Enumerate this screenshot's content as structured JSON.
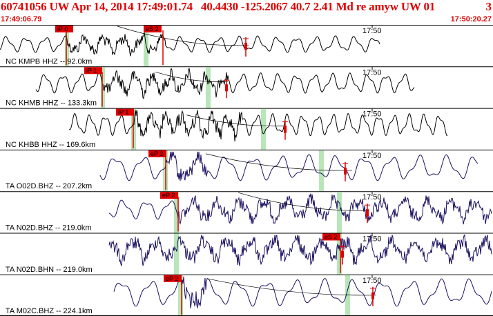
{
  "header": {
    "title": "60741056 UW Apr 14, 2014 17:49:01.74   40.4430 -125.2067 40.7 2.41 Md re amyw UW 01",
    "suffix": "3",
    "start_time": "17:49:06.79",
    "end_time": "17:50:20.27"
  },
  "colors": {
    "header_text": "#e00000",
    "trace_black": "#000000",
    "trace_blue": "#1a1060",
    "pick_marker": "#e00000",
    "highlight_band": "#b8e6b8",
    "separator": "#000000"
  },
  "time_axis": {
    "label": "17:50"
  },
  "traces": [
    {
      "station_label": "NC KMPB HHZ -- 92.0km",
      "phases": [
        {
          "label": "iP 0"
        },
        {
          "label": "eS 2"
        }
      ],
      "color": "black"
    },
    {
      "station_label": "NC KHMB HHZ -- 133.3km",
      "phases": [
        {
          "label": "iP 1"
        }
      ],
      "color": "black"
    },
    {
      "station_label": "NC KHBB HHZ -- 169.6km",
      "phases": [
        {
          "label": "iP 1"
        }
      ],
      "color": "black"
    },
    {
      "station_label": "TA O02D.BHZ -- 207.2km",
      "phases": [
        {
          "label": "eP 2"
        }
      ],
      "color": "blue"
    },
    {
      "station_label": "TA N02D.BHZ -- 219.0km",
      "phases": [
        {
          "label": "eP 2"
        }
      ],
      "color": "blue"
    },
    {
      "station_label": "TA N02D.BHN -- 219.0km",
      "phases": [
        {
          "label": "eS 2"
        }
      ],
      "color": "blue"
    },
    {
      "station_label": "TA M02C.BHZ -- 224.1km",
      "phases": [
        {
          "label": "eP 2"
        }
      ],
      "color": "blue"
    }
  ]
}
